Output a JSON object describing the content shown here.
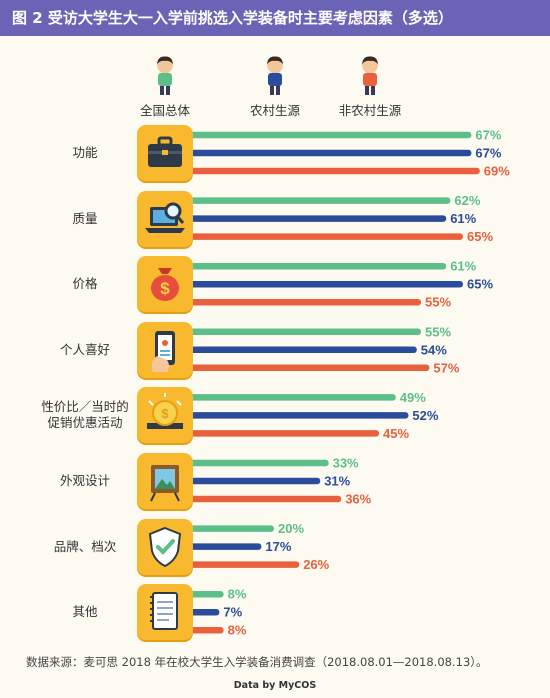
{
  "header": {
    "title": "图 2 受访大学生大一入学前挑选入学装备时主要考虑因素（多选）"
  },
  "colors": {
    "banner": "#6b63b5",
    "national": "#5cbf8a",
    "rural": "#2a4c9a",
    "nonrural": "#e8603d",
    "icon_bg": "#f8b92e"
  },
  "legend": [
    {
      "label": "全国总体",
      "icon": "person-green-shirt-icon"
    },
    {
      "label": "农村生源",
      "icon": "person-blue-shirt-icon"
    },
    {
      "label": "非农村生源",
      "icon": "person-red-shirt-icon"
    }
  ],
  "chart_data": {
    "type": "bar",
    "orientation": "horizontal",
    "value_suffix": "%",
    "categories": [
      "功能",
      "质量",
      "价格",
      "个人喜好",
      "性价比／当时的促销优惠活动",
      "外观设计",
      "品牌、档次",
      "其他"
    ],
    "category_lines": [
      [
        "功能"
      ],
      [
        "质量"
      ],
      [
        "价格"
      ],
      [
        "个人喜好"
      ],
      [
        "性价比／当时的",
        "促销优惠活动"
      ],
      [
        "外观设计"
      ],
      [
        "品牌、档次"
      ],
      [
        "其他"
      ]
    ],
    "category_icons": [
      "briefcase-icon",
      "laptop-magnifier-icon",
      "money-bag-icon",
      "phone-hand-icon",
      "coin-discount-icon",
      "picture-frame-icon",
      "shield-badge-icon",
      "notebook-icon"
    ],
    "series": [
      {
        "name": "全国总体",
        "values": [
          67,
          62,
          61,
          55,
          49,
          33,
          20,
          8
        ]
      },
      {
        "name": "农村生源",
        "values": [
          67,
          61,
          65,
          54,
          52,
          31,
          17,
          7
        ]
      },
      {
        "name": "非农村生源",
        "values": [
          69,
          65,
          55,
          57,
          45,
          36,
          26,
          8
        ]
      }
    ],
    "xlim": [
      0,
      100
    ],
    "grid": false,
    "legend_position": "top"
  },
  "footnote": "数据来源：麦可思 2018 年在校大学生入学装备消费调查（2018.08.01—2018.08.13）。",
  "brand": "Data by MyCOS"
}
